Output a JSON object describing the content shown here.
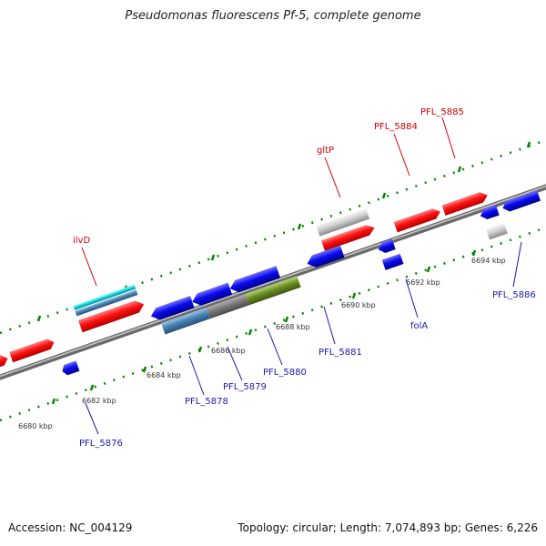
{
  "title": "Pseudomonas fluorescens Pf-5, complete genome",
  "footer": {
    "accession": "Accession: NC_004129",
    "summary": "Topology: circular; Length: 7,074,893 bp; Genes: 6,226"
  },
  "ticks": [
    "6680 kbp",
    "6682 kbp",
    "6684 kbp",
    "6686 kbp",
    "6688 kbp",
    "6690 kbp",
    "6692 kbp",
    "6694 kbp"
  ],
  "gene_labels": {
    "ilvD": "ilvD",
    "gltP": "gltP",
    "PFL_5884": "PFL_5884",
    "PFL_5885": "PFL_5885",
    "PFL_5876": "PFL_5876",
    "PFL_5878": "PFL_5878",
    "PFL_5879": "PFL_5879",
    "PFL_5880": "PFL_5880",
    "PFL_5881": "PFL_5881",
    "folA": "folA",
    "PFL_5886": "PFL_5886"
  },
  "colors": {
    "forward_gene": "#ff0000",
    "reverse_gene": "#0000ee",
    "rna_gene": "#00cccc",
    "pseudo_gene": "#c8c8c8",
    "steelblue_gene": "#4682b4",
    "olive_gene": "#6b8e23",
    "gray_gene": "#808080",
    "backbone": "#888888",
    "tick": "#008800"
  }
}
